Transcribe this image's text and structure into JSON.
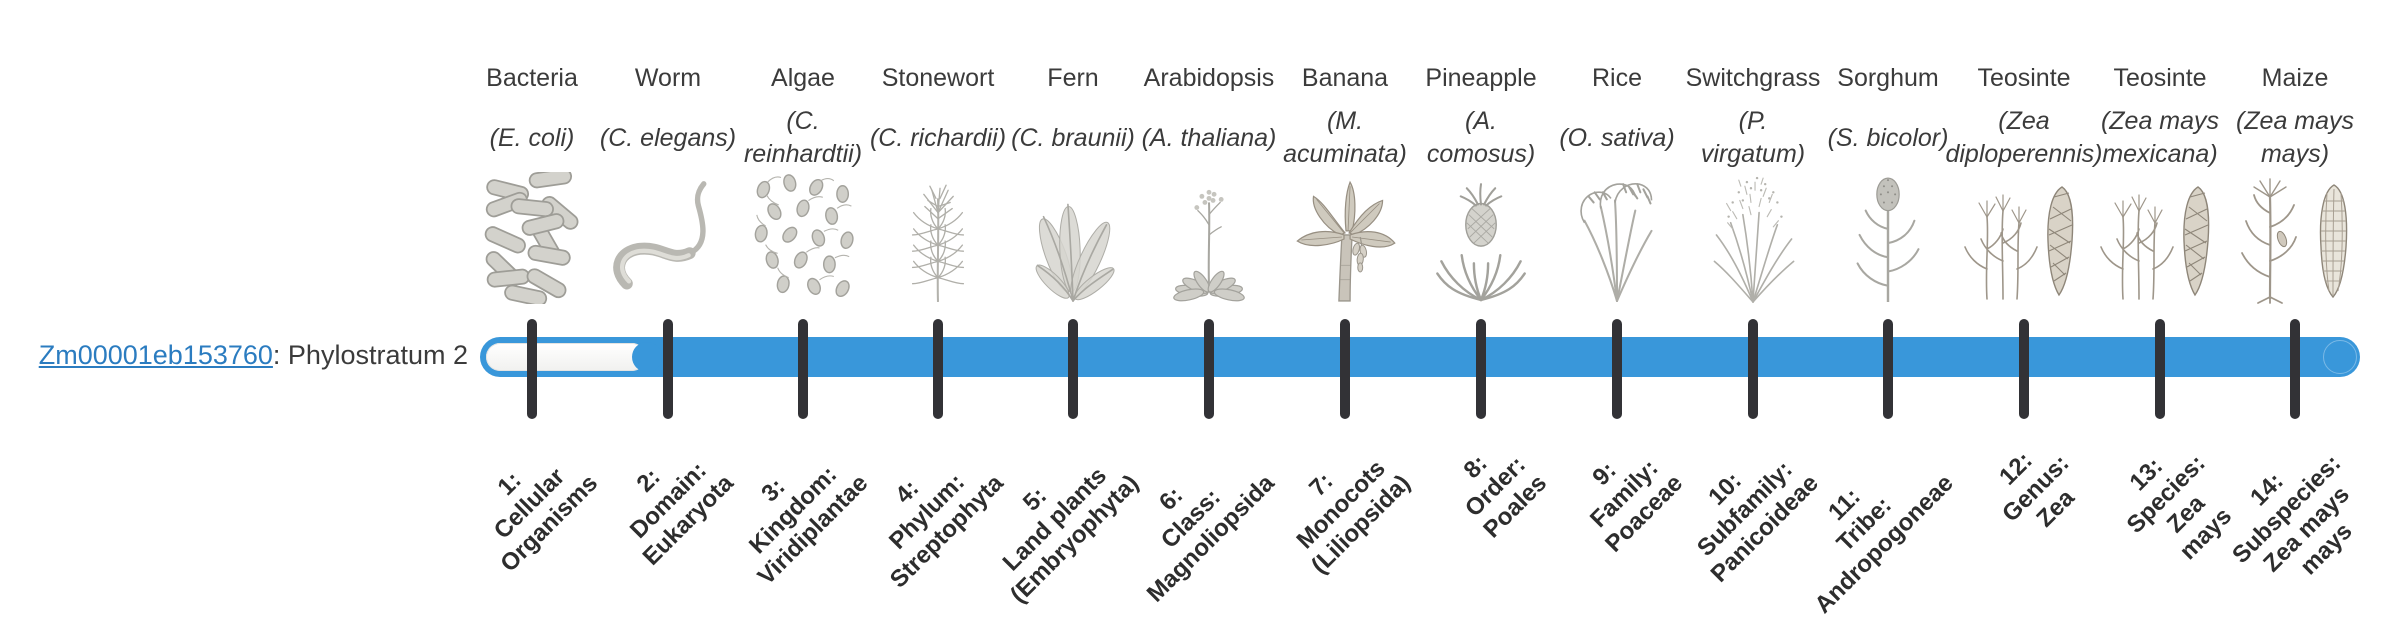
{
  "figure": {
    "gene": {
      "id": "Zm00001eb153760",
      "label_suffix": ": Phylostratum 2",
      "phylostratum": 2
    }
  },
  "colors": {
    "bar_fill": "#3997da",
    "bar_unfilled": "#fafafa",
    "tick": "#323236",
    "heading_text": "#3b3b3b",
    "stratum_text": "#2d2d2d",
    "link": "#2b7cc0",
    "icon_gray": "#b4b3ae"
  },
  "chart_data": {
    "type": "bar",
    "title": "Zm00001eb153760: Phylostratum 2",
    "gene_id": "Zm00001eb153760",
    "phylostratum": 2,
    "num_strata": 14,
    "filled_strata_range": [
      2,
      14
    ],
    "unfilled_strata_range": [
      1,
      1
    ],
    "columns": [
      {
        "n": 1,
        "key": "bacteria",
        "organism": "Bacteria",
        "sci": "(E. coli)",
        "icon": "bacteria",
        "stratum_label": "1:\nCellular\nOrganisms"
      },
      {
        "n": 2,
        "key": "worm",
        "organism": "Worm",
        "sci": "(C. elegans)",
        "icon": "worm",
        "stratum_label": "2:\nDomain:\nEukaryota"
      },
      {
        "n": 3,
        "key": "algae",
        "organism": "Algae",
        "sci": "(C.\nreinhardtii)",
        "icon": "algae",
        "stratum_label": "3:\nKingdom:\nViridiplantae"
      },
      {
        "n": 4,
        "key": "stonewort",
        "organism": "Stonewort",
        "sci": "(C. richardii)",
        "icon": "stonewort",
        "stratum_label": "4:\nPhylum:\nStreptophyta"
      },
      {
        "n": 5,
        "key": "fern",
        "organism": "Fern",
        "sci": "(C. braunii)",
        "icon": "fern",
        "stratum_label": "5:\nLand plants\n(Embryophyta)"
      },
      {
        "n": 6,
        "key": "arabidopsis",
        "organism": "Arabidopsis",
        "sci": "(A. thaliana)",
        "icon": "arabidopsis",
        "stratum_label": "6:\nClass:\nMagnoliopsida"
      },
      {
        "n": 7,
        "key": "banana",
        "organism": "Banana",
        "sci": "(M.\nacuminata)",
        "icon": "banana",
        "stratum_label": "7:\nMonocots\n(Liliopsida)"
      },
      {
        "n": 8,
        "key": "pineapple",
        "organism": "Pineapple",
        "sci": "(A.\ncomosus)",
        "icon": "pineapple",
        "stratum_label": "8:\nOrder:\nPoales"
      },
      {
        "n": 9,
        "key": "rice",
        "organism": "Rice",
        "sci": "(O. sativa)",
        "icon": "rice",
        "stratum_label": "9:\nFamily:\nPoaceae"
      },
      {
        "n": 10,
        "key": "switchgrass",
        "organism": "Switchgrass",
        "sci": "(P.\nvirgatum)",
        "icon": "switchgrass",
        "stratum_label": "10:\nSubfamily:\nPanicoideae"
      },
      {
        "n": 11,
        "key": "sorghum",
        "organism": "Sorghum",
        "sci": "(S. bicolor)",
        "icon": "sorghum",
        "stratum_label": "11:\nTribe:\nAndropogoneae"
      },
      {
        "n": 12,
        "key": "teosinte-diploperennis",
        "organism": "Teosinte",
        "sci": "(Zea\ndiploperennis)",
        "icon": "teosinte",
        "stratum_label": "12:\nGenus:\nZea"
      },
      {
        "n": 13,
        "key": "teosinte-mexicana",
        "organism": "Teosinte",
        "sci": "(Zea mays\nmexicana)",
        "icon": "teosinte",
        "stratum_label": "13:\nSpecies:\nZea\nmays"
      },
      {
        "n": 14,
        "key": "maize",
        "organism": "Maize",
        "sci": "(Zea mays\nmays)",
        "icon": "maize",
        "stratum_label": "14:\nSubspecies:\nZea mays\nmays"
      }
    ]
  }
}
